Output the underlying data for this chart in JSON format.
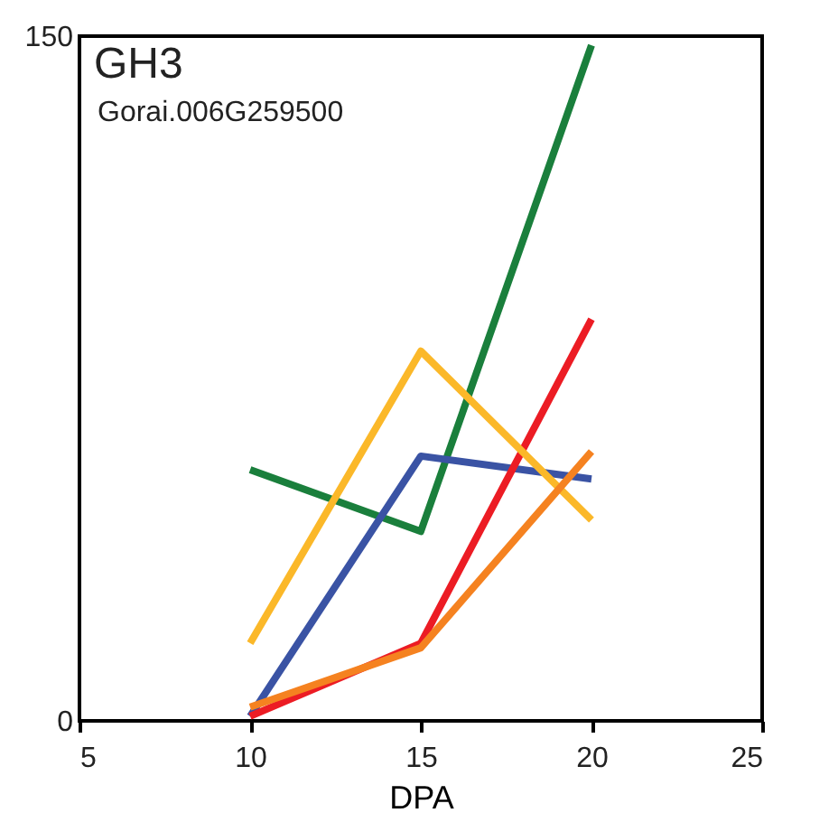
{
  "chart_data": {
    "type": "line",
    "title": "GH3",
    "subtitle": "Gorai.006G259500",
    "xlabel": "DPA",
    "x": [
      10,
      15,
      20
    ],
    "series": [
      {
        "color": "#1a7f3c",
        "values": [
          55,
          41.5,
          148
        ]
      },
      {
        "color": "#3a53a4",
        "values": [
          1,
          58,
          53
        ]
      },
      {
        "color": "#ec1c24",
        "values": [
          1,
          17,
          88
        ]
      },
      {
        "color": "#fbb829",
        "values": [
          17,
          81,
          44
        ]
      },
      {
        "color": "#f58220",
        "values": [
          3,
          16,
          59
        ]
      }
    ],
    "xlim": [
      5,
      25
    ],
    "xticks": [
      5,
      10,
      15,
      20,
      25
    ],
    "ylim": [
      0,
      150
    ],
    "yticks": [
      0,
      150
    ]
  }
}
